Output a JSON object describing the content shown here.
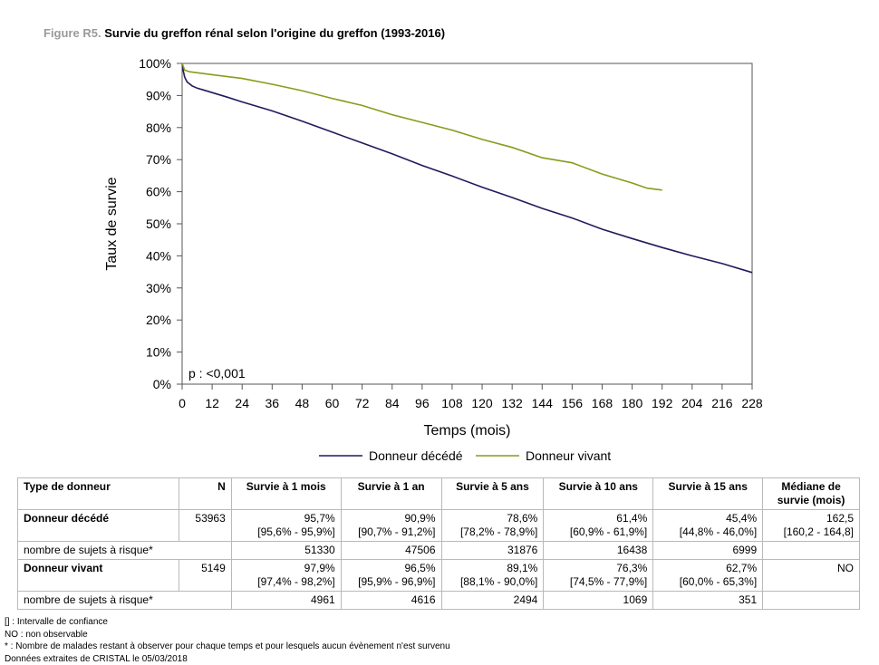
{
  "title": {
    "prefix": "Figure R5.",
    "text": "Survie du greffon rénal selon l'origine du greffon (1993-2016)"
  },
  "chart_data": {
    "type": "line",
    "xlabel": "Temps (mois)",
    "ylabel": "Taux de survie",
    "xlim": [
      0,
      228
    ],
    "ylim": [
      0,
      100
    ],
    "xticks": [
      0,
      12,
      24,
      36,
      48,
      60,
      72,
      84,
      96,
      108,
      120,
      132,
      144,
      156,
      168,
      180,
      192,
      204,
      216,
      228
    ],
    "yticks": [
      0,
      10,
      20,
      30,
      40,
      50,
      60,
      70,
      80,
      90,
      100
    ],
    "ytick_suffix": "%",
    "annotation": "p : <0,001",
    "grid": false,
    "legend_position": "bottom",
    "series": [
      {
        "name": "Donneur décédé",
        "color": "#1f1a5e",
        "x": [
          0,
          0.5,
          1,
          2,
          4,
          6,
          9,
          12,
          18,
          24,
          36,
          48,
          60,
          72,
          84,
          96,
          108,
          120,
          132,
          144,
          156,
          168,
          180,
          192,
          204,
          216,
          228
        ],
        "y": [
          100,
          97.5,
          95.7,
          94.2,
          93.0,
          92.3,
          91.6,
          90.9,
          89.5,
          88.0,
          85.2,
          82.0,
          78.6,
          75.2,
          71.8,
          68.2,
          64.9,
          61.4,
          58.2,
          54.8,
          51.8,
          48.3,
          45.4,
          42.6,
          40.0,
          37.6,
          34.8
        ]
      },
      {
        "name": "Donneur vivant",
        "color": "#8a9a1e",
        "x": [
          0,
          1,
          3,
          6,
          12,
          24,
          36,
          48,
          60,
          72,
          84,
          96,
          108,
          120,
          132,
          144,
          156,
          168,
          180,
          186,
          192
        ],
        "y": [
          100,
          97.9,
          97.4,
          97.1,
          96.5,
          95.3,
          93.5,
          91.5,
          89.1,
          86.9,
          84.0,
          81.6,
          79.2,
          76.3,
          73.8,
          70.6,
          69.0,
          65.5,
          62.7,
          61.1,
          60.5
        ]
      }
    ]
  },
  "table": {
    "headers": [
      "Type de donneur",
      "N",
      "Survie à 1 mois",
      "Survie à 1 an",
      "Survie à 5 ans",
      "Survie à 10 ans",
      "Survie à 15 ans",
      "Médiane de survie (mois)"
    ],
    "rows": [
      {
        "type": "Donneur décédé",
        "n": "53963",
        "values": [
          "95,7%",
          "90,9%",
          "78,6%",
          "61,4%",
          "45,4%",
          "162,5"
        ],
        "ci": [
          "[95,6% - 95,9%]",
          "[90,7% - 91,2%]",
          "[78,2% - 78,9%]",
          "[60,9% - 61,9%]",
          "[44,8% - 46,0%]",
          "[160,2 - 164,8]"
        ],
        "risk_label": "nombre de sujets à risque*",
        "risk": [
          "51330",
          "47506",
          "31876",
          "16438",
          "6999",
          ""
        ]
      },
      {
        "type": "Donneur vivant",
        "n": "5149",
        "values": [
          "97,9%",
          "96,5%",
          "89,1%",
          "76,3%",
          "62,7%",
          "NO"
        ],
        "ci": [
          "[97,4% - 98,2%]",
          "[95,9% - 96,9%]",
          "[88,1% - 90,0%]",
          "[74,5% - 77,9%]",
          "[60,0% - 65,3%]",
          ""
        ],
        "risk_label": "nombre de sujets à risque*",
        "risk": [
          "4961",
          "4616",
          "2494",
          "1069",
          "351",
          ""
        ]
      }
    ]
  },
  "footnotes": [
    "[] : Intervalle de confiance",
    "NO : non observable",
    "* : Nombre de malades restant à observer pour chaque temps et pour lesquels aucun évènement n'est survenu",
    "Données extraites de CRISTAL le 05/03/2018"
  ]
}
